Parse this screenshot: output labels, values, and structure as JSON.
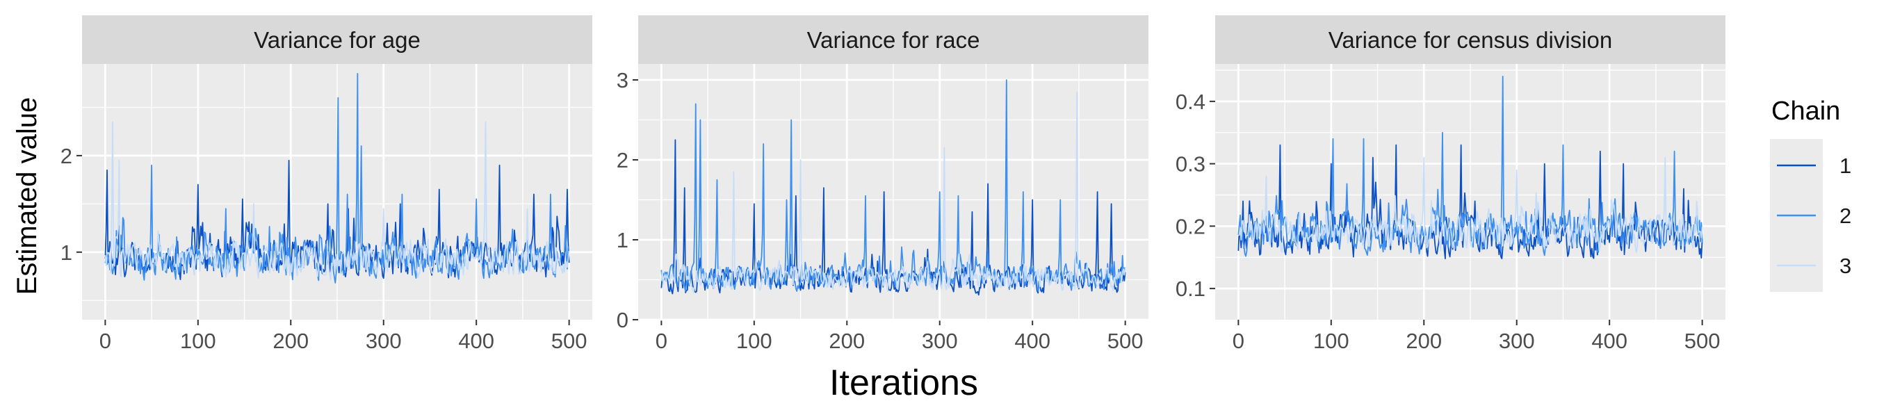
{
  "chart_data": {
    "type": "line",
    "xlabel": "Iterations",
    "ylabel": "Estimated value",
    "legend": {
      "title": "Chain",
      "placement": "right",
      "entries": [
        {
          "label": "1",
          "color": "#0b4fc4"
        },
        {
          "label": "2",
          "color": "#3d8ff0"
        },
        {
          "label": "3",
          "color": "#c6ddfa"
        }
      ]
    },
    "panels": [
      {
        "title": "Variance for age",
        "xlim": [
          -25,
          525
        ],
        "ylim": [
          0.3,
          2.95
        ],
        "xticks": [
          0,
          100,
          200,
          300,
          400,
          500
        ],
        "yticks": [
          1,
          2
        ],
        "series": [
          {
            "name": "1",
            "peaks": [
              [
                2,
                1.85
              ],
              [
                100,
                1.7
              ],
              [
                148,
                1.55
              ],
              [
                198,
                1.95
              ],
              [
                240,
                1.5
              ],
              [
                262,
                1.45
              ],
              [
                318,
                1.5
              ],
              [
                360,
                1.65
              ],
              [
                425,
                1.9
              ],
              [
                462,
                1.6
              ],
              [
                498,
                1.65
              ]
            ],
            "base": 0.88,
            "amp": 0.28,
            "floor": 0.48
          },
          {
            "name": "2",
            "peaks": [
              [
                50,
                1.9
              ],
              [
                130,
                1.45
              ],
              [
                251,
                2.6
              ],
              [
                261,
                1.6
              ],
              [
                272,
                2.85
              ],
              [
                276,
                2.1
              ],
              [
                320,
                1.6
              ],
              [
                400,
                1.55
              ],
              [
                480,
                1.6
              ]
            ],
            "base": 0.85,
            "amp": 0.27,
            "floor": 0.5
          },
          {
            "name": "3",
            "peaks": [
              [
                8,
                2.35
              ],
              [
                15,
                1.95
              ],
              [
                160,
                1.5
              ],
              [
                300,
                1.45
              ],
              [
                410,
                2.35
              ],
              [
                455,
                1.45
              ]
            ],
            "base": 0.86,
            "amp": 0.26,
            "floor": 0.52
          }
        ]
      },
      {
        "title": "Variance for race",
        "xlim": [
          -25,
          525
        ],
        "ylim": [
          0,
          3.2
        ],
        "xticks": [
          0,
          100,
          200,
          300,
          400,
          500
        ],
        "yticks": [
          0,
          1,
          2,
          3
        ],
        "series": [
          {
            "name": "1",
            "peaks": [
              [
                15,
                2.25
              ],
              [
                25,
                1.65
              ],
              [
                100,
                1.45
              ],
              [
                145,
                1.55
              ],
              [
                175,
                1.65
              ],
              [
                240,
                1.6
              ],
              [
                335,
                1.35
              ],
              [
                352,
                1.7
              ],
              [
                400,
                1.5
              ],
              [
                470,
                1.6
              ],
              [
                485,
                1.45
              ]
            ],
            "base": 0.45,
            "amp": 0.22,
            "floor": 0.12
          },
          {
            "name": "2",
            "peaks": [
              [
                37,
                2.7
              ],
              [
                42,
                2.5
              ],
              [
                60,
                1.75
              ],
              [
                110,
                2.2
              ],
              [
                135,
                1.5
              ],
              [
                140,
                2.5
              ],
              [
                220,
                1.55
              ],
              [
                300,
                1.6
              ],
              [
                320,
                1.55
              ],
              [
                372,
                3.0
              ],
              [
                390,
                1.6
              ],
              [
                430,
                1.5
              ]
            ],
            "base": 0.48,
            "amp": 0.22,
            "floor": 0.12
          },
          {
            "name": "3",
            "peaks": [
              [
                78,
                1.85
              ],
              [
                150,
                2.0
              ],
              [
                305,
                2.15
              ],
              [
                448,
                2.85
              ]
            ],
            "base": 0.46,
            "amp": 0.2,
            "floor": 0.14
          }
        ]
      },
      {
        "title": "Variance for census division",
        "xlim": [
          -25,
          525
        ],
        "ylim": [
          0.05,
          0.46
        ],
        "xticks": [
          0,
          100,
          200,
          300,
          400,
          500
        ],
        "yticks": [
          0.1,
          0.2,
          0.3,
          0.4
        ],
        "series": [
          {
            "name": "1",
            "peaks": [
              [
                5,
                0.24
              ],
              [
                45,
                0.33
              ],
              [
                100,
                0.3
              ],
              [
                145,
                0.31
              ],
              [
                170,
                0.33
              ],
              [
                240,
                0.33
              ],
              [
                330,
                0.3
              ],
              [
                390,
                0.32
              ],
              [
                415,
                0.3
              ],
              [
                480,
                0.26
              ]
            ],
            "base": 0.17,
            "amp": 0.045,
            "floor": 0.07
          },
          {
            "name": "2",
            "peaks": [
              [
                102,
                0.34
              ],
              [
                135,
                0.34
              ],
              [
                220,
                0.35
              ],
              [
                285,
                0.44
              ],
              [
                350,
                0.33
              ],
              [
                470,
                0.32
              ]
            ],
            "base": 0.18,
            "amp": 0.045,
            "floor": 0.08
          },
          {
            "name": "3",
            "peaks": [
              [
                30,
                0.28
              ],
              [
                200,
                0.31
              ],
              [
                300,
                0.29
              ],
              [
                460,
                0.31
              ]
            ],
            "base": 0.18,
            "amp": 0.04,
            "floor": 0.08
          }
        ]
      }
    ]
  }
}
